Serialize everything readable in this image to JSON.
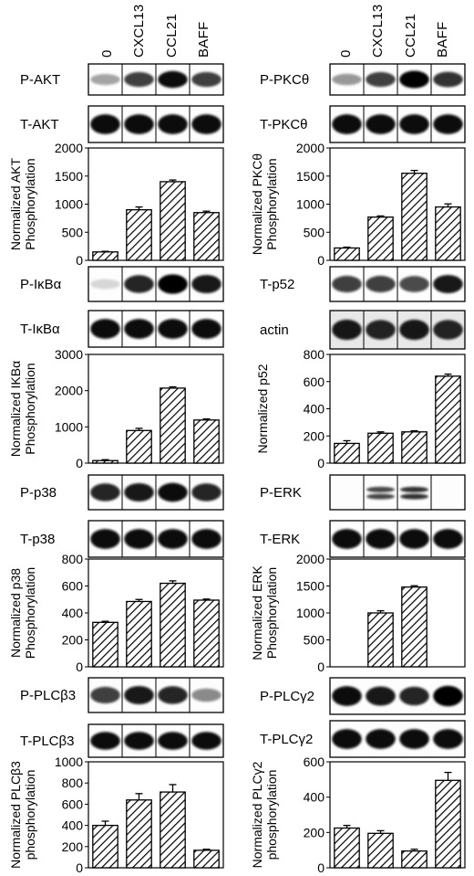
{
  "lanes": [
    "0",
    "CXCL13",
    "CCL21",
    "BAFF"
  ],
  "left": [
    {
      "phospho_label": "P-AKT",
      "total_label": "T-AKT",
      "chart_data": {
        "type": "bar",
        "categories": [
          "0",
          "CXCL13",
          "CCL21",
          "BAFF"
        ],
        "values": [
          150,
          900,
          1400,
          850
        ],
        "errors": [
          10,
          50,
          30,
          25
        ],
        "ylabel": "Normalized AKT Phosphorylation",
        "ylim": [
          0,
          2000
        ],
        "yticks": [
          0,
          500,
          1000,
          1500,
          2000
        ]
      }
    },
    {
      "phospho_label": "P-IκBα",
      "total_label": "T-IκBα",
      "chart_data": {
        "type": "bar",
        "categories": [
          "0",
          "CXCL13",
          "CCL21",
          "BAFF"
        ],
        "values": [
          70,
          900,
          2070,
          1190
        ],
        "errors": [
          25,
          60,
          35,
          30
        ],
        "ylabel": "Normalized IKBα Phosphorylation",
        "ylim": [
          0,
          3000
        ],
        "yticks": [
          0,
          1000,
          2000,
          3000
        ]
      }
    },
    {
      "phospho_label": "P-p38",
      "total_label": "T-p38",
      "chart_data": {
        "type": "bar",
        "categories": [
          "0",
          "CXCL13",
          "CCL21",
          "BAFF"
        ],
        "values": [
          330,
          485,
          620,
          495
        ],
        "errors": [
          8,
          15,
          18,
          8
        ],
        "ylabel": "Normalized p38 Phosphorylation",
        "ylim": [
          0,
          800
        ],
        "yticks": [
          0,
          200,
          400,
          600,
          800
        ]
      }
    },
    {
      "phospho_label": "P-PLCβ3",
      "total_label": "T-PLCβ3",
      "chart_data": {
        "type": "bar",
        "categories": [
          "0",
          "CXCL13",
          "CCL21",
          "BAFF"
        ],
        "values": [
          400,
          640,
          715,
          165
        ],
        "errors": [
          40,
          60,
          70,
          10
        ],
        "ylabel": "Normalized PLCβ3 phosphorylation",
        "ylim": [
          0,
          1000
        ],
        "yticks": [
          0,
          200,
          400,
          600,
          800,
          1000
        ]
      }
    }
  ],
  "right": [
    {
      "phospho_label": "P-PKCθ",
      "total_label": "T-PKCθ",
      "chart_data": {
        "type": "bar",
        "categories": [
          "0",
          "CXCL13",
          "CCL21",
          "BAFF"
        ],
        "values": [
          220,
          770,
          1550,
          950
        ],
        "errors": [
          15,
          20,
          50,
          55
        ],
        "ylabel": "Normalized PKCθ Phosphorylation",
        "ylim": [
          0,
          2000
        ],
        "yticks": [
          0,
          500,
          1000,
          1500,
          2000
        ]
      }
    },
    {
      "phospho_label": "T-p52",
      "total_label": "actin",
      "chart_data": {
        "type": "bar",
        "categories": [
          "0",
          "CXCL13",
          "CCL21",
          "BAFF"
        ],
        "values": [
          145,
          220,
          230,
          640
        ],
        "errors": [
          20,
          10,
          8,
          15
        ],
        "ylabel": "Normalized p52",
        "ylim": [
          0,
          800
        ],
        "yticks": [
          0,
          200,
          400,
          600,
          800
        ]
      }
    },
    {
      "phospho_label": "P-ERK",
      "total_label": "T-ERK",
      "chart_data": {
        "type": "bar",
        "categories": [
          "0",
          "CXCL13",
          "CCL21",
          "BAFF"
        ],
        "values": [
          0,
          1000,
          1480,
          0
        ],
        "errors": [
          0,
          40,
          25,
          0
        ],
        "ylabel": "Normalized ERK Phosphorylation",
        "ylim": [
          0,
          2000
        ],
        "yticks": [
          0,
          500,
          1000,
          1500,
          2000
        ]
      }
    },
    {
      "phospho_label": "P-PLCγ2",
      "total_label": "T-PLCγ2",
      "chart_data": {
        "type": "bar",
        "categories": [
          "0",
          "CXCL13",
          "CCL21",
          "BAFF"
        ],
        "values": [
          225,
          195,
          95,
          495
        ],
        "errors": [
          15,
          15,
          10,
          45
        ],
        "ylabel": "Normalized PLCγ2 phosphorylation",
        "ylim": [
          0,
          600
        ],
        "yticks": [
          0,
          200,
          400,
          600
        ]
      }
    }
  ]
}
